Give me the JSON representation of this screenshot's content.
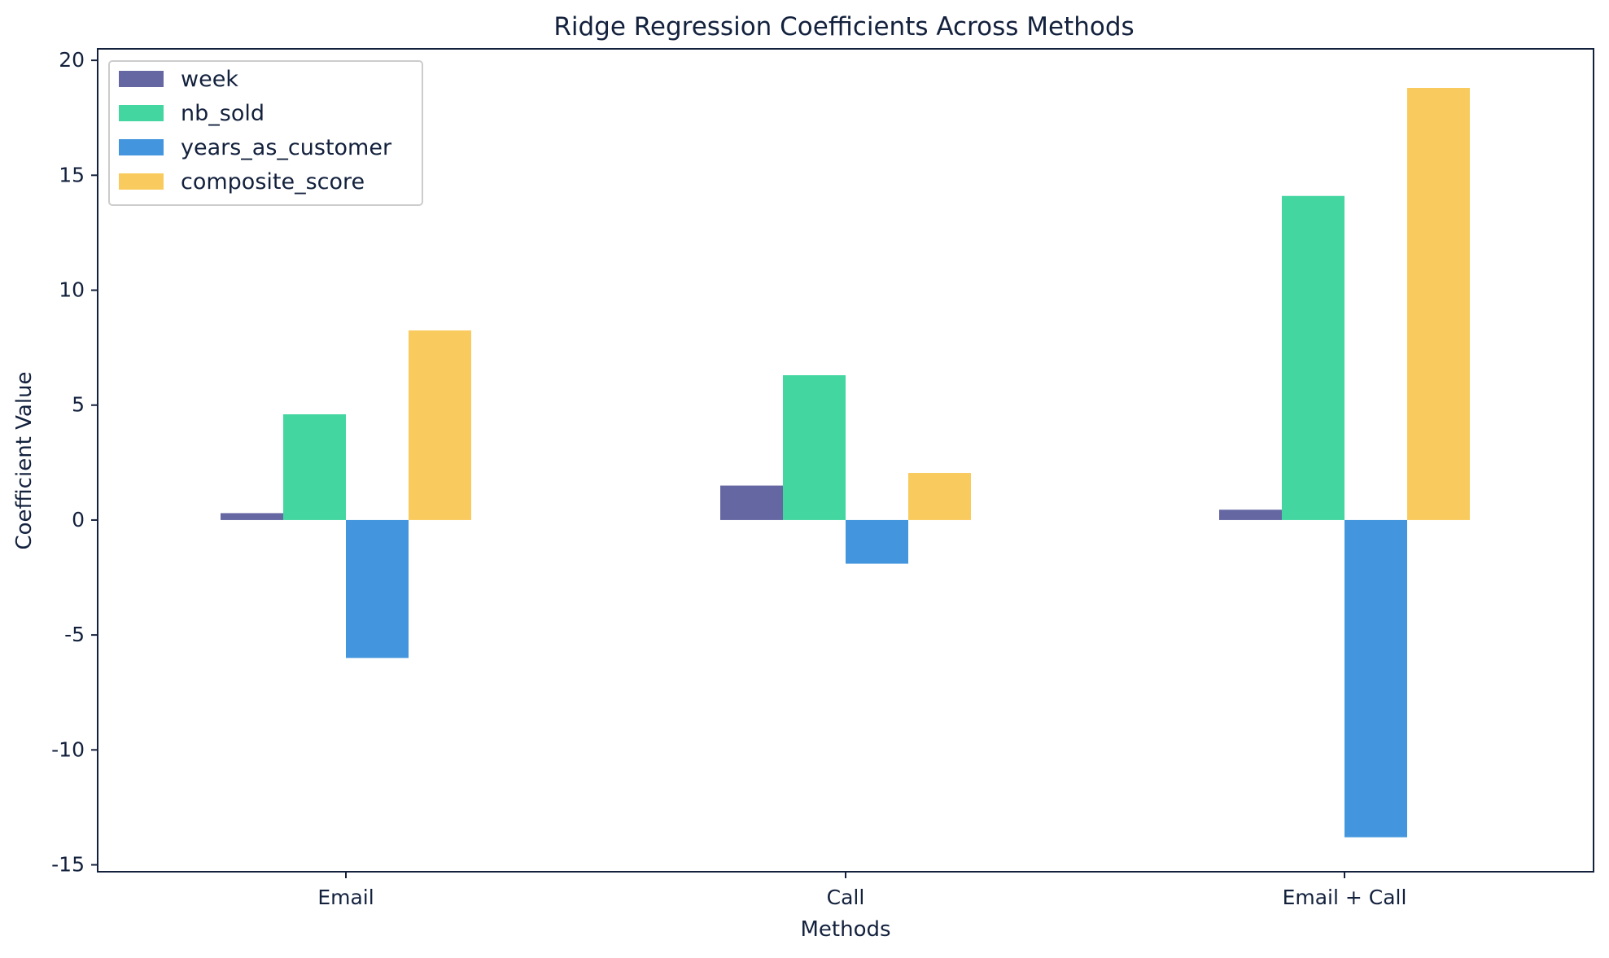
{
  "chart_data": {
    "type": "bar",
    "title": "Ridge Regression Coefficients Across Methods",
    "xlabel": "Methods",
    "ylabel": "Coefficient Value",
    "categories": [
      "Email",
      "Call",
      "Email + Call"
    ],
    "ylim": [
      -15.3,
      20.5
    ],
    "yticks": [
      -15,
      -10,
      -5,
      0,
      5,
      10,
      15,
      20
    ],
    "grid": false,
    "legend_position": "upper-left",
    "series": [
      {
        "name": "week",
        "color": "#6567a3",
        "values": [
          0.3,
          1.5,
          0.45
        ]
      },
      {
        "name": "nb_sold",
        "color": "#43d6a1",
        "values": [
          4.6,
          6.3,
          14.1
        ]
      },
      {
        "name": "years_as_customer",
        "color": "#4396dd",
        "values": [
          -6.0,
          -1.9,
          -13.8
        ]
      },
      {
        "name": "composite_score",
        "color": "#f9cb5e",
        "values": [
          8.25,
          2.05,
          18.8
        ]
      }
    ]
  }
}
